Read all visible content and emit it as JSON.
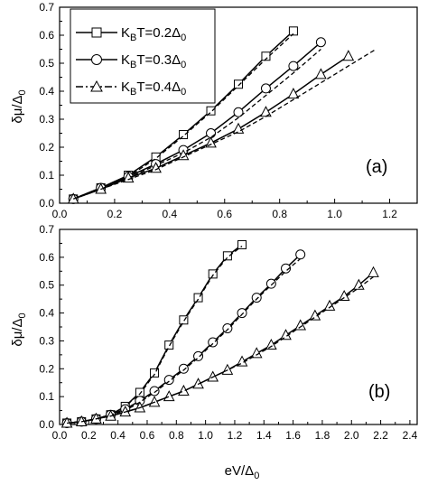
{
  "chart_data": [
    {
      "panel": "(a)",
      "type": "line",
      "xlabel": "",
      "ylabel": "δμ/Δ0",
      "xlim": [
        0.0,
        1.3
      ],
      "ylim": [
        0.0,
        0.7
      ],
      "xticks": [
        "0.0",
        "0.2",
        "0.4",
        "0.6",
        "0.8",
        "1.0",
        "1.2"
      ],
      "yticks": [
        "0.0",
        "0.1",
        "0.2",
        "0.3",
        "0.4",
        "0.5",
        "0.6",
        "0.7"
      ],
      "legend_position": "top-left",
      "series": [
        {
          "name": "KBT=0.2Δ0",
          "marker": "square",
          "style": "solid",
          "x": [
            0.05,
            0.15,
            0.25,
            0.35,
            0.45,
            0.55,
            0.65,
            0.75,
            0.85
          ],
          "y": [
            0.015,
            0.055,
            0.1,
            0.165,
            0.245,
            0.33,
            0.425,
            0.525,
            0.615
          ]
        },
        {
          "name": "KBT=0.2Δ0 (dashed)",
          "marker": "none",
          "style": "dash",
          "x": [
            0.05,
            0.15,
            0.25,
            0.35,
            0.45,
            0.55,
            0.65,
            0.75,
            0.85
          ],
          "y": [
            0.015,
            0.055,
            0.095,
            0.16,
            0.24,
            0.325,
            0.42,
            0.515,
            0.605
          ]
        },
        {
          "name": "KBT=0.3Δ0",
          "marker": "circle",
          "style": "solid",
          "x": [
            0.05,
            0.15,
            0.25,
            0.35,
            0.45,
            0.55,
            0.65,
            0.75,
            0.85,
            0.95
          ],
          "y": [
            0.015,
            0.055,
            0.095,
            0.14,
            0.19,
            0.25,
            0.325,
            0.41,
            0.49,
            0.575
          ]
        },
        {
          "name": "KBT=0.3Δ0 (dashed)",
          "marker": "none",
          "style": "dash",
          "x": [
            0.05,
            0.15,
            0.25,
            0.35,
            0.45,
            0.55,
            0.65,
            0.75,
            0.85,
            0.95
          ],
          "y": [
            0.015,
            0.05,
            0.09,
            0.135,
            0.18,
            0.235,
            0.305,
            0.385,
            0.465,
            0.55
          ]
        },
        {
          "name": "KBT=0.4Δ0",
          "marker": "triangle",
          "style": "solid",
          "x": [
            0.05,
            0.15,
            0.25,
            0.35,
            0.45,
            0.55,
            0.65,
            0.75,
            0.85,
            0.95,
            1.05
          ],
          "y": [
            0.015,
            0.05,
            0.09,
            0.125,
            0.17,
            0.215,
            0.265,
            0.325,
            0.39,
            0.46,
            0.525
          ]
        },
        {
          "name": "KBT=0.4Δ0 (dashed)",
          "marker": "none",
          "style": "dash",
          "x": [
            0.05,
            0.15,
            0.25,
            0.35,
            0.45,
            0.55,
            0.65,
            0.75,
            0.85,
            0.95,
            1.05,
            1.15
          ],
          "y": [
            0.015,
            0.05,
            0.085,
            0.12,
            0.165,
            0.21,
            0.255,
            0.31,
            0.37,
            0.43,
            0.49,
            0.55
          ]
        }
      ]
    },
    {
      "panel": "(b)",
      "type": "line",
      "xlabel": "eV/Δ0",
      "ylabel": "δμ/Δ0",
      "xlim": [
        0.0,
        2.45
      ],
      "ylim": [
        0.0,
        0.7
      ],
      "xticks": [
        "0.0",
        "0.2",
        "0.4",
        "0.6",
        "0.8",
        "1.0",
        "1.2",
        "1.4",
        "1.6",
        "1.8",
        "2.0",
        "2.2",
        "2.4"
      ],
      "yticks": [
        "0.0",
        "0.1",
        "0.2",
        "0.3",
        "0.4",
        "0.5",
        "0.6",
        "0.7"
      ],
      "series": [
        {
          "name": "KBT=0.2Δ0",
          "marker": "square",
          "style": "solid",
          "x": [
            0.05,
            0.15,
            0.25,
            0.35,
            0.45,
            0.55,
            0.65,
            0.75,
            0.85,
            0.95,
            1.05,
            1.15,
            1.25
          ],
          "y": [
            0.005,
            0.01,
            0.02,
            0.035,
            0.065,
            0.115,
            0.185,
            0.285,
            0.375,
            0.455,
            0.54,
            0.605,
            0.645
          ]
        },
        {
          "name": "KBT=0.2Δ0 (dashed)",
          "marker": "none",
          "style": "dash",
          "x": [
            0.05,
            0.15,
            0.25,
            0.35,
            0.45,
            0.55,
            0.65,
            0.75,
            0.85,
            0.95,
            1.05,
            1.15,
            1.25
          ],
          "y": [
            0.005,
            0.01,
            0.02,
            0.035,
            0.065,
            0.11,
            0.18,
            0.28,
            0.37,
            0.45,
            0.535,
            0.6,
            0.64
          ]
        },
        {
          "name": "KBT=0.3Δ0",
          "marker": "circle",
          "style": "solid",
          "x": [
            0.05,
            0.15,
            0.25,
            0.35,
            0.45,
            0.55,
            0.65,
            0.75,
            0.85,
            0.95,
            1.05,
            1.15,
            1.25,
            1.35,
            1.45,
            1.55,
            1.65
          ],
          "y": [
            0.005,
            0.01,
            0.02,
            0.035,
            0.055,
            0.085,
            0.12,
            0.16,
            0.2,
            0.245,
            0.295,
            0.345,
            0.4,
            0.455,
            0.505,
            0.56,
            0.61
          ]
        },
        {
          "name": "KBT=0.3Δ0 (dashed)",
          "marker": "none",
          "style": "dash",
          "x": [
            0.05,
            0.15,
            0.25,
            0.35,
            0.45,
            0.55,
            0.65,
            0.75,
            0.85,
            0.95,
            1.05,
            1.15,
            1.25,
            1.35,
            1.45,
            1.55,
            1.65
          ],
          "y": [
            0.005,
            0.01,
            0.02,
            0.035,
            0.05,
            0.08,
            0.115,
            0.155,
            0.195,
            0.24,
            0.29,
            0.34,
            0.395,
            0.45,
            0.5,
            0.55,
            0.595
          ]
        },
        {
          "name": "KBT=0.4Δ0",
          "marker": "triangle",
          "style": "solid",
          "x": [
            0.05,
            0.15,
            0.25,
            0.35,
            0.45,
            0.55,
            0.65,
            0.75,
            0.85,
            0.95,
            1.05,
            1.15,
            1.25,
            1.35,
            1.45,
            1.55,
            1.65,
            1.75,
            1.85,
            1.95,
            2.05,
            2.15
          ],
          "y": [
            0.005,
            0.01,
            0.02,
            0.03,
            0.045,
            0.06,
            0.08,
            0.1,
            0.12,
            0.145,
            0.17,
            0.195,
            0.225,
            0.255,
            0.285,
            0.32,
            0.355,
            0.39,
            0.425,
            0.46,
            0.5,
            0.545
          ]
        },
        {
          "name": "KBT=0.4Δ0 (dashed)",
          "marker": "none",
          "style": "dash",
          "x": [
            0.05,
            0.15,
            0.25,
            0.35,
            0.45,
            0.55,
            0.65,
            0.75,
            0.85,
            0.95,
            1.05,
            1.15,
            1.25,
            1.35,
            1.45,
            1.55,
            1.65,
            1.75,
            1.85,
            1.95,
            2.05,
            2.15
          ],
          "y": [
            0.005,
            0.01,
            0.02,
            0.03,
            0.045,
            0.06,
            0.08,
            0.1,
            0.12,
            0.145,
            0.17,
            0.195,
            0.22,
            0.25,
            0.28,
            0.315,
            0.35,
            0.385,
            0.42,
            0.455,
            0.49,
            0.53
          ]
        }
      ]
    }
  ],
  "legend": [
    {
      "marker": "square",
      "prefix": "K",
      "sub": "B",
      "mid": "T=0.2Δ",
      "sub2": "0"
    },
    {
      "marker": "circle",
      "prefix": "K",
      "sub": "B",
      "mid": "T=0.3Δ",
      "sub2": "0"
    },
    {
      "marker": "triangle",
      "prefix": "K",
      "sub": "B",
      "mid": "T=0.4Δ",
      "sub2": "0"
    }
  ],
  "ylabel_parts": {
    "main": "δμ/Δ",
    "sub": "0"
  },
  "xlabel_parts": {
    "main": "eV/Δ",
    "sub": "0"
  },
  "panel_labels": [
    "(a)",
    "(b)"
  ]
}
